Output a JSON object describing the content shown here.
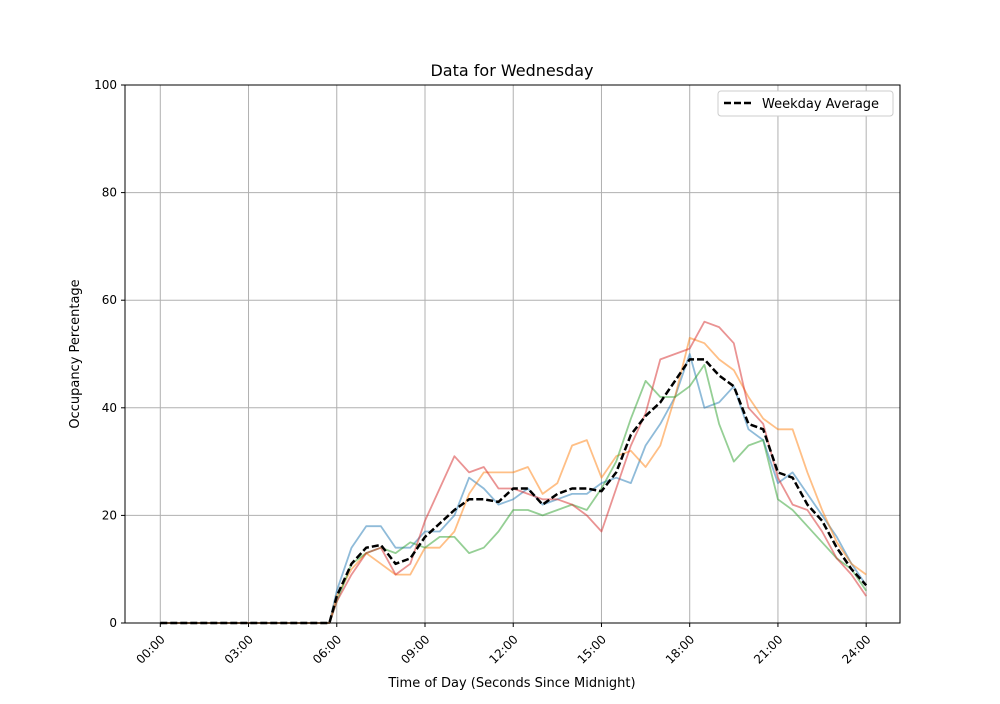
{
  "chart_data": {
    "type": "line",
    "title": "Data for Wednesday",
    "xlabel": "Time of Day (Seconds Since Midnight)",
    "ylabel": "Occupancy Percentage",
    "ylim": [
      0,
      100
    ],
    "xlim": [
      "-01:12",
      "25:09"
    ],
    "grid": true,
    "legend_placement": "top-right",
    "x_ticks": [
      "00:00",
      "03:00",
      "06:00",
      "09:00",
      "12:00",
      "15:00",
      "18:00",
      "21:00",
      "24:00"
    ],
    "y_ticks": [
      0,
      20,
      40,
      60,
      80,
      100
    ],
    "x": [
      "00:00",
      "00:30",
      "01:00",
      "01:30",
      "02:00",
      "02:30",
      "03:00",
      "03:30",
      "04:00",
      "04:30",
      "05:00",
      "05:30",
      "05:45",
      "06:00",
      "06:30",
      "07:00",
      "07:30",
      "08:00",
      "08:30",
      "09:00",
      "09:30",
      "10:00",
      "10:30",
      "11:00",
      "11:30",
      "12:00",
      "12:30",
      "13:00",
      "13:30",
      "14:00",
      "14:30",
      "15:00",
      "15:30",
      "16:00",
      "16:30",
      "17:00",
      "17:30",
      "18:00",
      "18:30",
      "19:00",
      "19:30",
      "20:00",
      "20:30",
      "21:00",
      "21:30",
      "22:00",
      "22:30",
      "23:00",
      "23:30",
      "24:00"
    ],
    "series": [
      {
        "color": "#1f77b4",
        "alpha": 0.5,
        "values": [
          0,
          0,
          0,
          0,
          0,
          0,
          0,
          0,
          0,
          0,
          0,
          0,
          0,
          6,
          14,
          18,
          18,
          14,
          14,
          17,
          17,
          20,
          27,
          25,
          22,
          23,
          25,
          22,
          23,
          24,
          24,
          26,
          27,
          26,
          33,
          37,
          42,
          50,
          40,
          41,
          44,
          36,
          34,
          26,
          28,
          24,
          20,
          16,
          11,
          7
        ]
      },
      {
        "color": "#ff7f0e",
        "alpha": 0.5,
        "values": [
          0,
          0,
          0,
          0,
          0,
          0,
          0,
          0,
          0,
          0,
          0,
          0,
          0,
          5,
          10,
          13,
          11,
          9,
          9,
          14,
          14,
          17,
          24,
          28,
          28,
          28,
          29,
          24,
          26,
          33,
          34,
          27,
          31,
          32,
          29,
          33,
          42,
          53,
          52,
          49,
          47,
          42,
          38,
          36,
          36,
          28,
          21,
          15,
          11,
          9
        ]
      },
      {
        "color": "#2ca02c",
        "alpha": 0.5,
        "values": [
          0,
          0,
          0,
          0,
          0,
          0,
          0,
          0,
          0,
          0,
          0,
          0,
          0,
          4,
          11,
          13,
          14,
          13,
          15,
          14,
          16,
          16,
          13,
          14,
          17,
          21,
          21,
          20,
          21,
          22,
          21,
          25,
          30,
          38,
          45,
          42,
          42,
          44,
          48,
          37,
          30,
          33,
          34,
          23,
          21,
          18,
          15,
          12,
          10,
          6
        ]
      },
      {
        "color": "#d62728",
        "alpha": 0.5,
        "values": [
          0,
          0,
          0,
          0,
          0,
          0,
          0,
          0,
          0,
          0,
          0,
          0,
          0,
          4,
          9,
          13,
          14,
          9,
          11,
          19,
          25,
          31,
          28,
          29,
          25,
          25,
          24,
          23,
          23,
          22,
          20,
          17,
          25,
          33,
          39,
          49,
          50,
          51,
          56,
          55,
          52,
          40,
          37,
          27,
          22,
          21,
          17,
          12,
          9,
          5
        ]
      },
      {
        "name": "Weekday Average",
        "color": "#000000",
        "dashed": true,
        "values": [
          0,
          0,
          0,
          0,
          0,
          0,
          0,
          0,
          0,
          0,
          0,
          0,
          0,
          5,
          11,
          14,
          14.5,
          11,
          12,
          16,
          18.5,
          21,
          23,
          23,
          22.5,
          25,
          25,
          22,
          24,
          25,
          25,
          24.5,
          28,
          35,
          38.5,
          41,
          45,
          49,
          49,
          46,
          44,
          37,
          36,
          28,
          27,
          22,
          19,
          14,
          10,
          7
        ]
      }
    ]
  }
}
